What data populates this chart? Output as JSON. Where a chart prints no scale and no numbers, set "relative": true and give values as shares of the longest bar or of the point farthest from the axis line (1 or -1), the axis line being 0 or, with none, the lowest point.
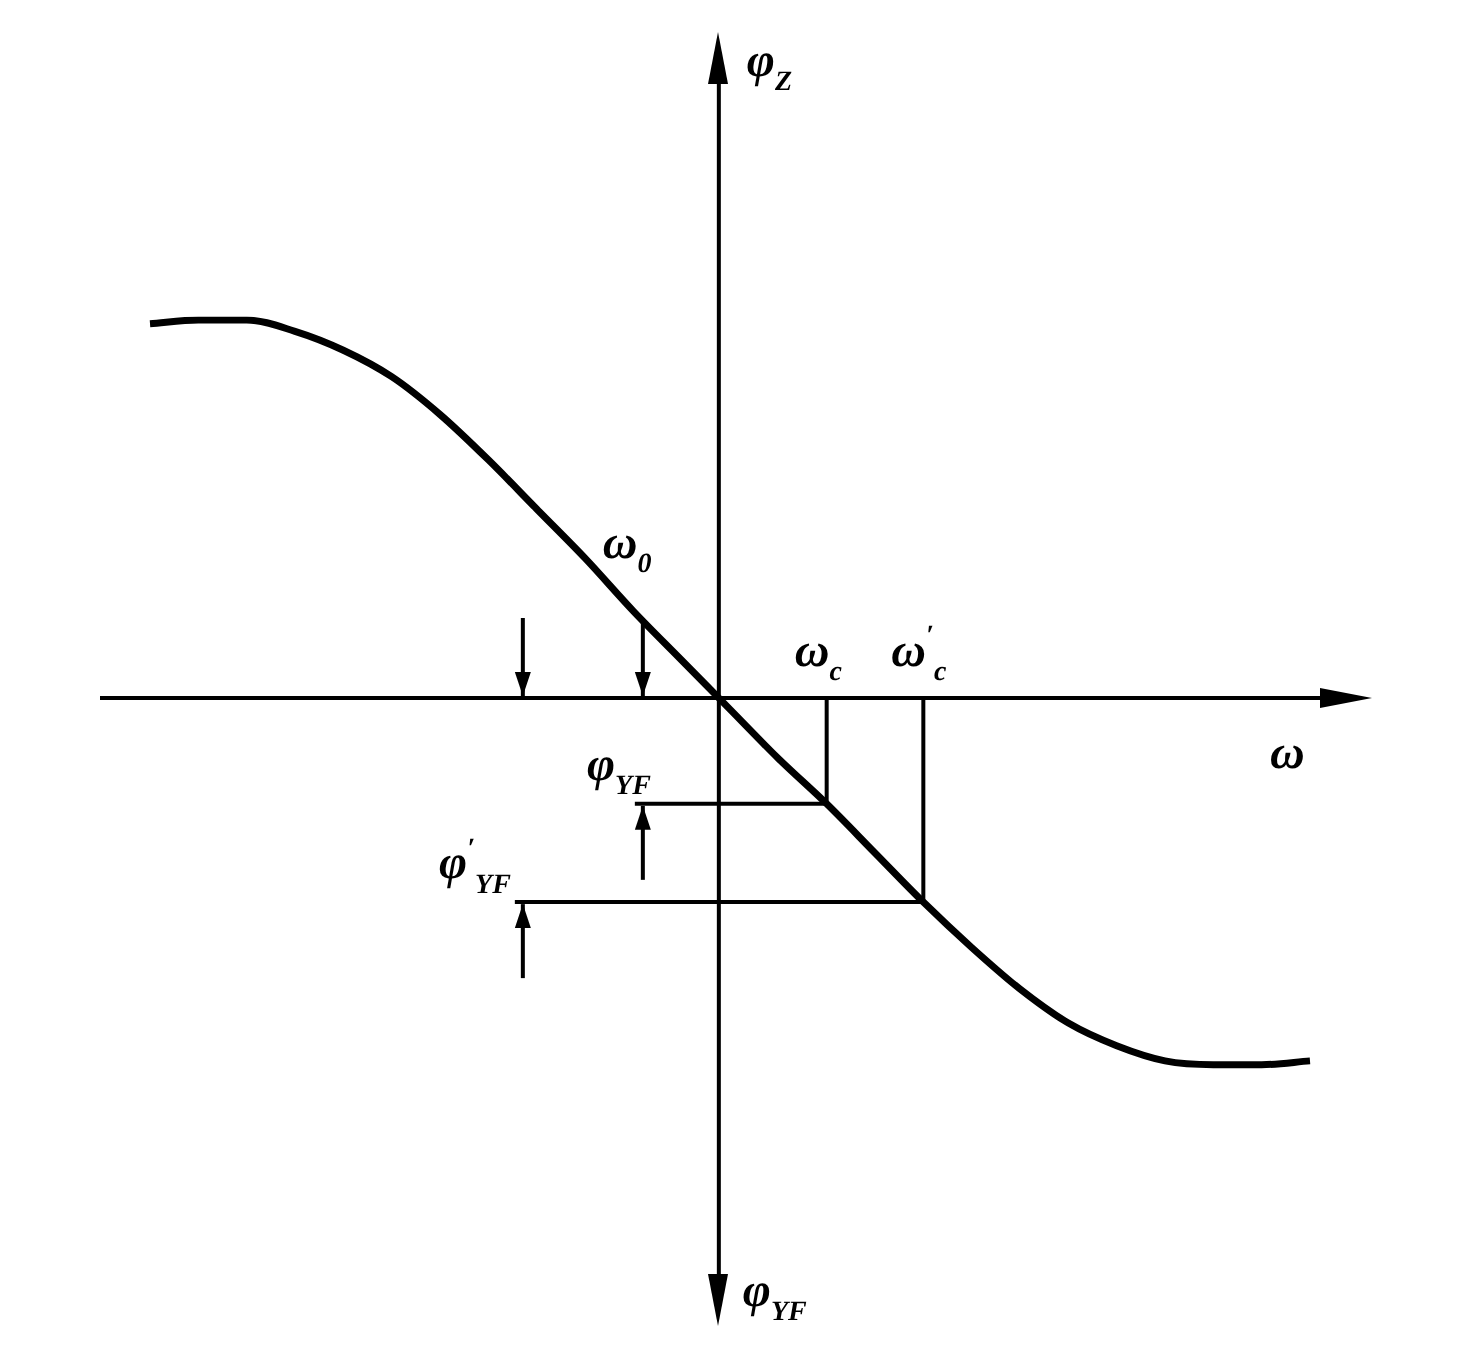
{
  "chart_data": {
    "type": "line",
    "relative": true,
    "xlabel": "ω",
    "ylabel": "φ$_{Z}$",
    "categories": [
      null,
      null,
      null,
      null,
      null,
      null,
      null,
      null,
      null,
      null,
      null,
      null,
      null,
      null,
      null,
      null,
      null,
      null,
      null,
      null,
      null,
      null,
      null,
      null,
      null
    ],
    "series": [
      {
        "color": "#000000",
        "values": [
          0.99,
          1,
          1,
          0.97,
          0.92,
          0.85,
          0.75,
          0.63,
          0.5,
          0.37,
          0.23,
          0.1,
          -0.03,
          -0.16,
          -0.28,
          -0.41,
          -0.54,
          -0.66,
          -0.77,
          -0.86,
          -0.92,
          -0.96,
          -0.97,
          -0.97,
          -0.96
        ]
      }
    ],
    "ref_lines": [
      {
        "axis": "y",
        "value": -0.28,
        "label": "φ$_{YF}$"
      },
      {
        "axis": "y",
        "value": -0.54,
        "label": "φ$^{′}$$_{YF}$"
      }
    ],
    "annotations": [
      "ω$_{0}$",
      {
        "text": "ω$_{c}$",
        "y": -0.28
      },
      {
        "text": "ω$^{′}$$_{c}$",
        "y": -0.54
      },
      "φ$_{YF}$"
    ],
    "legend": false,
    "marker": "none",
    "line_style": "solid"
  }
}
